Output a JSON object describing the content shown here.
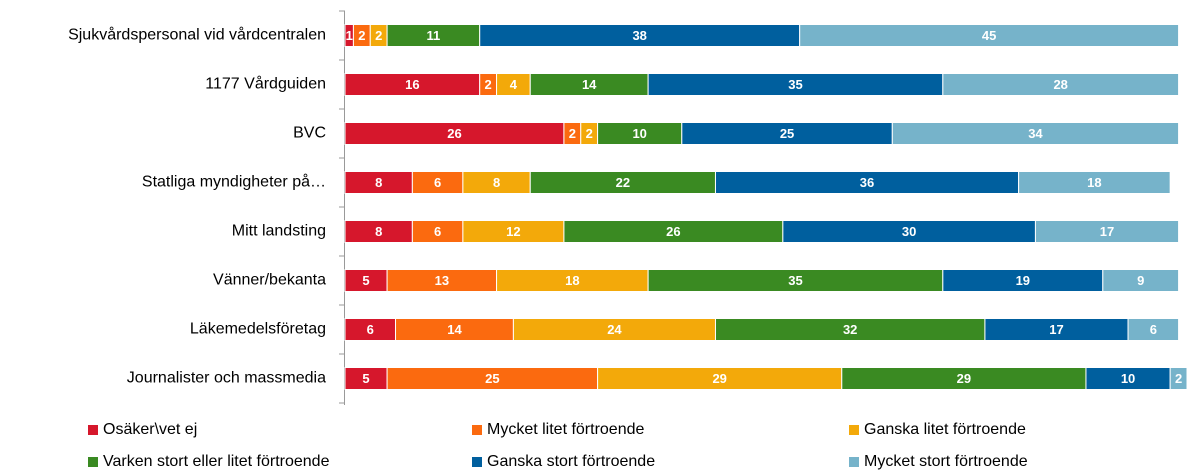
{
  "chart_data": {
    "type": "bar",
    "orientation": "horizontal",
    "stacked": true,
    "categories": [
      "Sjukvårdspersonal vid vårdcentralen",
      "1177 Vårdguiden",
      "BVC",
      "Statliga myndigheter på…",
      "Mitt landsting",
      "Vänner/bekanta",
      "Läkemedelsföretag",
      "Journalister och massmedia"
    ],
    "series": [
      {
        "name": "Osäker\\vet ej",
        "color": "#d6172c",
        "values": [
          1,
          16,
          26,
          8,
          8,
          5,
          6,
          5
        ]
      },
      {
        "name": "Mycket litet förtroende",
        "color": "#fb6a0f",
        "values": [
          2,
          2,
          2,
          6,
          6,
          13,
          14,
          25
        ]
      },
      {
        "name": "Ganska litet förtroende",
        "color": "#f3a90a",
        "values": [
          2,
          4,
          2,
          8,
          12,
          18,
          24,
          29
        ]
      },
      {
        "name": "Varken stort eller litet förtroende",
        "color": "#3a8a22",
        "values": [
          11,
          14,
          10,
          22,
          26,
          35,
          32,
          29
        ]
      },
      {
        "name": "Ganska stort förtroende",
        "color": "#005f9e",
        "values": [
          38,
          35,
          25,
          36,
          30,
          19,
          17,
          10
        ]
      },
      {
        "name": "Mycket stort förtroende",
        "color": "#76b3ca",
        "values": [
          45,
          28,
          34,
          18,
          17,
          9,
          6,
          2
        ]
      }
    ],
    "xlim": [
      0,
      100
    ],
    "legend": "bottom"
  }
}
